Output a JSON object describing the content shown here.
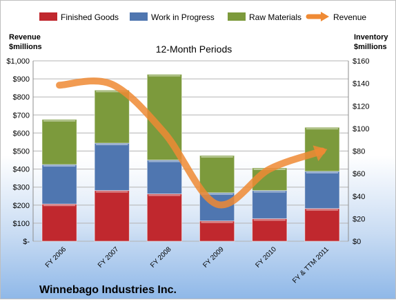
{
  "chart_data": {
    "type": "bar",
    "subtitle": "12-Month Periods",
    "company": "Winnebago Industries Inc.",
    "categories": [
      "FY 2006",
      "FY 2007",
      "FY 2008",
      "FY 2009",
      "FY 2010",
      "FY & TTM 2011"
    ],
    "y_left": {
      "label_line1": "Revenue",
      "label_line2": "$millions",
      "ticks": [
        "$-",
        "$100",
        "$200",
        "$300",
        "$400",
        "$500",
        "$600",
        "$700",
        "$800",
        "$900",
        "$1,000"
      ],
      "range": [
        0,
        1000
      ]
    },
    "y_right": {
      "label_line1": "Inventory",
      "label_line2": "$millions",
      "ticks": [
        "$0",
        "$20",
        "$40",
        "$60",
        "$80",
        "$100",
        "$120",
        "$140",
        "$160"
      ],
      "range": [
        0,
        160
      ]
    },
    "stacked_series": [
      {
        "name": "Finished Goods",
        "color": "#c0282e",
        "values": [
          33,
          45,
          42,
          18,
          20,
          29
        ]
      },
      {
        "name": "Work in Progress",
        "color": "#4f76b0",
        "values": [
          35,
          42,
          30,
          25,
          25,
          33
        ]
      },
      {
        "name": "Raw Materials",
        "color": "#7c9a3c",
        "values": [
          40,
          47,
          76,
          33,
          20,
          39
        ]
      }
    ],
    "line_series": {
      "name": "Revenue",
      "color": "#ef8a34",
      "values": [
        865,
        870,
        600,
        205,
        400,
        500
      ]
    },
    "grid": true,
    "legend_position": "top"
  }
}
